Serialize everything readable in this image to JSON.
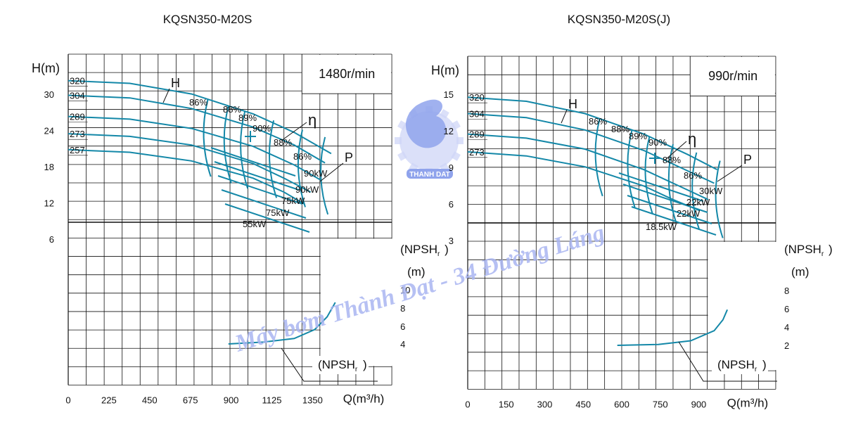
{
  "watermark": {
    "text": "Máy bơm Thành Đạt - 34 Đường Láng",
    "logo_text": "THANH DAT"
  },
  "colors": {
    "curve": "#1488a8",
    "grid": "#111111",
    "text": "#111111",
    "watermark": "#aab6f2"
  },
  "chart_data": [
    {
      "type": "line",
      "title": "KQSN350-M20S",
      "speed_label": "1480r/min",
      "xlabel": "Q(m³/h)",
      "ylabel": "H(m)",
      "npsh_label": "(NPSHr)",
      "npsh_unit": "(m)",
      "npsh_curve_label": "(NPSHr)",
      "eff_symbol": "η",
      "power_symbol": "P",
      "head_symbol": "H",
      "xlim": [
        0,
        1575
      ],
      "ylim": [
        6,
        34
      ],
      "x_ticks": [
        0,
        225,
        450,
        675,
        900,
        1125,
        1350
      ],
      "y_ticks": [
        6,
        12,
        18,
        24,
        30
      ],
      "npsh_ticks": [
        4,
        6,
        8,
        10
      ],
      "head_curves": [
        {
          "name": "320",
          "x": [
            0,
            300,
            600,
            900,
            1100,
            1280
          ],
          "y": [
            30,
            29.6,
            28,
            25,
            22.2,
            19
          ]
        },
        {
          "name": "304",
          "x": [
            0,
            300,
            600,
            900,
            1100,
            1250
          ],
          "y": [
            27.8,
            27.4,
            25.8,
            23,
            20.3,
            17.6
          ]
        },
        {
          "name": "289",
          "x": [
            0,
            300,
            600,
            900,
            1100,
            1230
          ],
          "y": [
            24.6,
            24.2,
            22.8,
            20.1,
            17.3,
            15
          ]
        },
        {
          "name": "273",
          "x": [
            0,
            300,
            600,
            900,
            1050,
            1180
          ],
          "y": [
            22,
            21.6,
            20.3,
            17.5,
            15.3,
            13.2
          ]
        },
        {
          "name": "257",
          "x": [
            0,
            300,
            600,
            900,
            1050,
            1150
          ],
          "y": [
            19.6,
            19.2,
            17.9,
            15.3,
            13.2,
            11.4
          ]
        }
      ],
      "npsh_curve": {
        "x": [
          780,
          950,
          1100,
          1200,
          1260,
          1300
        ],
        "y": [
          4,
          4.2,
          4.6,
          5.6,
          7,
          8.6
        ]
      },
      "efficiency_labels": [
        "86%",
        "88%",
        "89%",
        "90%",
        "88%",
        "86%"
      ],
      "power_labels": [
        "90kW",
        "90kW",
        "75kW",
        "75kW",
        "55kW"
      ]
    },
    {
      "type": "line",
      "title": "KQSN350-M20S(J)",
      "speed_label": "990r/min",
      "xlabel": "Q(m³/h)",
      "ylabel": "H(m)",
      "npsh_label": "(NPSHr)",
      "npsh_unit": "(m)",
      "npsh_curve_label": "(NPSHr)",
      "eff_symbol": "η",
      "power_symbol": "P",
      "head_symbol": "H",
      "xlim": [
        0,
        1050
      ],
      "ylim": [
        3,
        16.5
      ],
      "x_ticks": [
        0,
        150,
        300,
        450,
        600,
        750,
        900
      ],
      "y_ticks": [
        3,
        6,
        9,
        12,
        15
      ],
      "npsh_ticks": [
        2,
        4,
        6,
        8
      ],
      "head_curves": [
        {
          "name": "320",
          "x": [
            0,
            200,
            400,
            600,
            750,
            850
          ],
          "y": [
            13.5,
            13.2,
            12.3,
            10.8,
            9.3,
            8.2
          ]
        },
        {
          "name": "304",
          "x": [
            0,
            200,
            400,
            600,
            750,
            840
          ],
          "y": [
            12.3,
            12,
            11.1,
            9.6,
            8.1,
            7.2
          ]
        },
        {
          "name": "289",
          "x": [
            0,
            200,
            400,
            600,
            720,
            820
          ],
          "y": [
            10.8,
            10.5,
            9.7,
            8.2,
            7,
            6
          ]
        },
        {
          "name": "273",
          "x": [
            0,
            200,
            400,
            600,
            700,
            790
          ],
          "y": [
            9.5,
            9.2,
            8.4,
            7,
            6,
            5.2
          ]
        }
      ],
      "npsh_curve": {
        "x": [
          510,
          650,
          760,
          840,
          870,
          885
        ],
        "y": [
          2,
          2.1,
          2.5,
          3.6,
          4.8,
          5.9
        ]
      },
      "efficiency_labels": [
        "86%",
        "88%",
        "89%",
        "90%",
        "88%",
        "86%"
      ],
      "power_labels": [
        "30kW",
        "22kW",
        "22kW",
        "18.5kW"
      ]
    }
  ]
}
